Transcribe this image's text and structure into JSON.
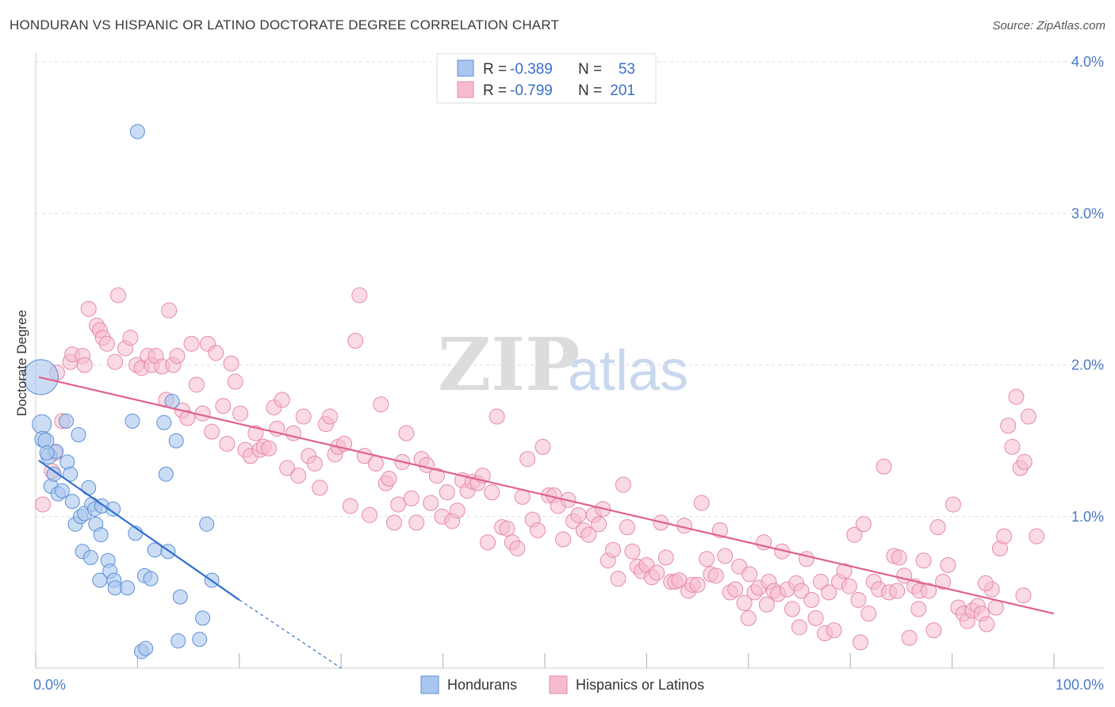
{
  "header": {
    "title": "HONDURAN VS HISPANIC OR LATINO DOCTORATE DEGREE CORRELATION CHART",
    "source": "Source: ZipAtlas.com"
  },
  "watermark": {
    "zip": "ZIP",
    "atlas": "atlas"
  },
  "legend": {
    "r_label": "R =",
    "n_label": "N =",
    "hondurans": {
      "r": "-0.389",
      "n": "53"
    },
    "hispanics": {
      "r": "-0.799",
      "n": "201"
    }
  },
  "bottom_legend": {
    "hondurans": "Hondurans",
    "hispanics": "Hispanics or Latinos"
  },
  "chart_data": {
    "type": "scatter",
    "title": "HONDURAN VS HISPANIC OR LATINO DOCTORATE DEGREE CORRELATION CHART",
    "xlabel": "",
    "ylabel": "Doctorate Degree",
    "xlim": [
      0,
      100
    ],
    "ylim": [
      0,
      4.0
    ],
    "x_tick_labels": {
      "left": "0.0%",
      "right": "100.0%"
    },
    "y_ticks": [
      {
        "value": 1.0,
        "label": "1.0%"
      },
      {
        "value": 2.0,
        "label": "2.0%"
      },
      {
        "value": 3.0,
        "label": "3.0%"
      },
      {
        "value": 4.0,
        "label": "4.0%"
      }
    ],
    "colors": {
      "hondurans_fill": "#a9c7ee",
      "hondurans_stroke": "#5b8fd6",
      "hondurans_line": "#2f6fd0",
      "hispanics_fill": "#f6bccd",
      "hispanics_stroke": "#e68aa6",
      "hispanics_line": "#e0628d"
    },
    "series": [
      {
        "name": "Hondurans",
        "r": -0.389,
        "n": 53,
        "trend": {
          "x0": 0.3,
          "y0": 1.37,
          "x1": 20,
          "y1": 0.45,
          "dash_to_x": 30,
          "dash_to_y": 0.0
        },
        "points": [
          [
            0.5,
            1.92,
            22
          ],
          [
            0.6,
            1.61,
            12
          ],
          [
            0.7,
            1.51,
            10
          ],
          [
            1.0,
            1.5,
            10
          ],
          [
            1.3,
            1.4,
            10
          ],
          [
            1.5,
            1.2,
            9
          ],
          [
            1.8,
            1.28,
            9
          ],
          [
            2.0,
            1.43,
            9
          ],
          [
            2.2,
            1.15,
            9
          ],
          [
            2.6,
            1.17,
            9
          ],
          [
            3.0,
            1.63,
            9
          ],
          [
            3.1,
            1.36,
            9
          ],
          [
            3.4,
            1.28,
            9
          ],
          [
            3.6,
            1.1,
            9
          ],
          [
            3.9,
            0.95,
            9
          ],
          [
            4.2,
            1.54,
            9
          ],
          [
            4.4,
            1.0,
            9
          ],
          [
            4.6,
            0.77,
            9
          ],
          [
            4.8,
            1.02,
            9
          ],
          [
            5.2,
            1.19,
            9
          ],
          [
            5.5,
            1.08,
            9
          ],
          [
            5.4,
            0.73,
            9
          ],
          [
            5.8,
            1.05,
            9
          ],
          [
            5.9,
            0.95,
            9
          ],
          [
            6.4,
            0.88,
            9
          ],
          [
            6.5,
            1.07,
            9
          ],
          [
            6.3,
            0.58,
            9
          ],
          [
            7.1,
            0.71,
            9
          ],
          [
            7.3,
            0.64,
            9
          ],
          [
            7.7,
            0.58,
            9
          ],
          [
            7.8,
            0.53,
            9
          ],
          [
            7.6,
            1.05,
            9
          ],
          [
            9.0,
            0.53,
            9
          ],
          [
            9.5,
            1.63,
            9
          ],
          [
            9.8,
            0.89,
            9
          ],
          [
            10.0,
            3.54,
            9
          ],
          [
            10.4,
            0.11,
            9
          ],
          [
            10.8,
            0.13,
            9
          ],
          [
            10.7,
            0.61,
            9
          ],
          [
            11.3,
            0.59,
            9
          ],
          [
            11.7,
            0.78,
            9
          ],
          [
            12.6,
            1.62,
            9
          ],
          [
            12.8,
            1.28,
            9
          ],
          [
            13.0,
            0.77,
            9
          ],
          [
            13.4,
            1.76,
            9
          ],
          [
            13.8,
            1.5,
            9
          ],
          [
            14.0,
            0.18,
            9
          ],
          [
            14.2,
            0.47,
            9
          ],
          [
            16.1,
            0.19,
            9
          ],
          [
            16.4,
            0.33,
            9
          ],
          [
            16.8,
            0.95,
            9
          ],
          [
            17.3,
            0.58,
            9
          ],
          [
            1.1,
            1.42,
            9
          ]
        ]
      },
      {
        "name": "Hispanics or Latinos",
        "r": -0.799,
        "n": 201,
        "trend": {
          "x0": 0.3,
          "y0": 1.92,
          "x1": 100,
          "y1": 0.36
        },
        "points": [
          [
            0.7,
            1.08
          ],
          [
            1.6,
            1.3
          ],
          [
            1.9,
            1.42
          ],
          [
            2.1,
            1.95
          ],
          [
            2.6,
            1.63
          ],
          [
            3.4,
            2.02
          ],
          [
            3.6,
            2.07
          ],
          [
            4.6,
            2.06
          ],
          [
            4.8,
            2.0
          ],
          [
            5.2,
            2.37
          ],
          [
            6.0,
            2.26
          ],
          [
            6.3,
            2.23
          ],
          [
            6.6,
            2.18
          ],
          [
            7.0,
            2.14
          ],
          [
            7.8,
            2.02
          ],
          [
            8.1,
            2.46
          ],
          [
            8.8,
            2.11
          ],
          [
            9.3,
            2.18
          ],
          [
            9.9,
            2.0
          ],
          [
            10.4,
            1.98
          ],
          [
            11.0,
            2.06
          ],
          [
            11.4,
            2.0
          ],
          [
            11.8,
            2.06
          ],
          [
            12.4,
            1.99
          ],
          [
            12.8,
            1.77
          ],
          [
            13.1,
            2.36
          ],
          [
            13.5,
            2.0
          ],
          [
            13.9,
            2.06
          ],
          [
            14.4,
            1.7
          ],
          [
            14.9,
            1.65
          ],
          [
            15.3,
            2.14
          ],
          [
            15.8,
            1.87
          ],
          [
            16.4,
            1.68
          ],
          [
            16.9,
            2.14
          ],
          [
            17.3,
            1.56
          ],
          [
            17.7,
            2.08
          ],
          [
            18.4,
            1.73
          ],
          [
            18.8,
            1.48
          ],
          [
            19.2,
            2.01
          ],
          [
            19.6,
            1.89
          ],
          [
            20.1,
            1.68
          ],
          [
            20.6,
            1.44
          ],
          [
            21.1,
            1.4
          ],
          [
            21.6,
            1.55
          ],
          [
            22.0,
            1.44
          ],
          [
            22.4,
            1.46
          ],
          [
            22.9,
            1.45
          ],
          [
            23.4,
            1.72
          ],
          [
            23.7,
            1.58
          ],
          [
            24.2,
            1.77
          ],
          [
            24.7,
            1.32
          ],
          [
            25.3,
            1.55
          ],
          [
            25.8,
            1.27
          ],
          [
            26.3,
            1.66
          ],
          [
            26.8,
            1.4
          ],
          [
            27.4,
            1.35
          ],
          [
            27.9,
            1.19
          ],
          [
            28.5,
            1.61
          ],
          [
            28.9,
            1.66
          ],
          [
            29.4,
            1.41
          ],
          [
            29.7,
            1.46
          ],
          [
            30.3,
            1.48
          ],
          [
            30.9,
            1.07
          ],
          [
            31.4,
            2.16
          ],
          [
            31.8,
            2.46
          ],
          [
            32.3,
            1.4
          ],
          [
            32.8,
            1.01
          ],
          [
            33.4,
            1.35
          ],
          [
            33.9,
            1.74
          ],
          [
            34.4,
            1.22
          ],
          [
            34.7,
            1.25
          ],
          [
            35.2,
            0.96
          ],
          [
            35.6,
            1.08
          ],
          [
            36.0,
            1.36
          ],
          [
            36.4,
            1.55
          ],
          [
            36.9,
            1.12
          ],
          [
            37.4,
            0.96
          ],
          [
            37.9,
            1.38
          ],
          [
            38.4,
            1.34
          ],
          [
            38.8,
            1.09
          ],
          [
            39.4,
            1.27
          ],
          [
            39.9,
            1.0
          ],
          [
            40.4,
            1.16
          ],
          [
            40.9,
            0.97
          ],
          [
            41.4,
            1.04
          ],
          [
            41.9,
            1.24
          ],
          [
            42.4,
            1.17
          ],
          [
            42.9,
            1.23
          ],
          [
            43.4,
            1.22
          ],
          [
            43.9,
            1.27
          ],
          [
            44.4,
            0.83
          ],
          [
            44.8,
            1.16
          ],
          [
            45.3,
            1.66
          ],
          [
            45.8,
            0.93
          ],
          [
            46.3,
            0.92
          ],
          [
            46.8,
            0.83
          ],
          [
            47.3,
            0.79
          ],
          [
            47.8,
            1.13
          ],
          [
            48.3,
            1.38
          ],
          [
            48.8,
            0.98
          ],
          [
            49.3,
            0.91
          ],
          [
            49.8,
            1.46
          ],
          [
            50.4,
            1.14
          ],
          [
            50.9,
            1.14
          ],
          [
            51.3,
            1.07
          ],
          [
            51.8,
            0.85
          ],
          [
            52.3,
            1.11
          ],
          [
            52.8,
            0.97
          ],
          [
            53.3,
            1.01
          ],
          [
            53.8,
            0.91
          ],
          [
            54.3,
            0.88
          ],
          [
            54.8,
            1.01
          ],
          [
            55.3,
            0.95
          ],
          [
            55.7,
            1.05
          ],
          [
            56.2,
            0.71
          ],
          [
            56.7,
            0.78
          ],
          [
            57.2,
            0.59
          ],
          [
            57.7,
            1.21
          ],
          [
            58.1,
            0.93
          ],
          [
            58.6,
            0.77
          ],
          [
            59.1,
            0.67
          ],
          [
            59.5,
            0.64
          ],
          [
            60.0,
            0.68
          ],
          [
            60.5,
            0.6
          ],
          [
            61.0,
            0.63
          ],
          [
            61.4,
            0.96
          ],
          [
            61.9,
            0.73
          ],
          [
            62.4,
            0.57
          ],
          [
            62.8,
            0.57
          ],
          [
            63.2,
            0.58
          ],
          [
            63.7,
            0.94
          ],
          [
            64.1,
            0.51
          ],
          [
            64.5,
            0.55
          ],
          [
            65.0,
            0.55
          ],
          [
            65.4,
            1.09
          ],
          [
            65.9,
            0.72
          ],
          [
            66.3,
            0.62
          ],
          [
            66.8,
            0.61
          ],
          [
            67.2,
            0.91
          ],
          [
            67.7,
            0.74
          ],
          [
            68.2,
            0.5
          ],
          [
            68.7,
            0.52
          ],
          [
            69.1,
            0.67
          ],
          [
            69.6,
            0.43
          ],
          [
            70.1,
            0.62
          ],
          [
            70.6,
            0.5
          ],
          [
            71.0,
            0.53
          ],
          [
            71.5,
            0.83
          ],
          [
            72.0,
            0.57
          ],
          [
            72.5,
            0.51
          ],
          [
            72.9,
            0.49
          ],
          [
            73.3,
            0.77
          ],
          [
            73.8,
            0.52
          ],
          [
            74.3,
            0.39
          ],
          [
            74.7,
            0.56
          ],
          [
            75.2,
            0.51
          ],
          [
            75.7,
            0.72
          ],
          [
            76.2,
            0.45
          ],
          [
            76.6,
            0.33
          ],
          [
            77.1,
            0.57
          ],
          [
            77.5,
            0.23
          ],
          [
            77.9,
            0.5
          ],
          [
            78.4,
            0.25
          ],
          [
            78.9,
            0.57
          ],
          [
            79.4,
            0.64
          ],
          [
            79.9,
            0.54
          ],
          [
            80.4,
            0.88
          ],
          [
            80.8,
            0.45
          ],
          [
            81.3,
            0.95
          ],
          [
            81.8,
            0.36
          ],
          [
            82.3,
            0.57
          ],
          [
            82.8,
            0.52
          ],
          [
            83.3,
            1.33
          ],
          [
            83.8,
            0.5
          ],
          [
            84.3,
            0.74
          ],
          [
            84.8,
            0.73
          ],
          [
            85.3,
            0.61
          ],
          [
            85.8,
            0.2
          ],
          [
            86.3,
            0.54
          ],
          [
            86.8,
            0.51
          ],
          [
            87.2,
            0.71
          ],
          [
            87.7,
            0.51
          ],
          [
            88.2,
            0.25
          ],
          [
            88.6,
            0.93
          ],
          [
            89.1,
            0.57
          ],
          [
            89.6,
            0.68
          ],
          [
            90.1,
            1.08
          ],
          [
            90.6,
            0.4
          ],
          [
            91.1,
            0.36
          ],
          [
            91.5,
            0.31
          ],
          [
            92.0,
            0.38
          ],
          [
            92.5,
            0.41
          ],
          [
            92.9,
            0.36
          ],
          [
            93.4,
            0.29
          ],
          [
            93.9,
            0.52
          ],
          [
            94.3,
            0.4
          ],
          [
            94.7,
            0.79
          ],
          [
            95.1,
            0.87
          ],
          [
            95.5,
            1.6
          ],
          [
            95.9,
            1.46
          ],
          [
            96.3,
            1.79
          ],
          [
            96.7,
            1.32
          ],
          [
            97.1,
            1.36
          ],
          [
            97.5,
            1.66
          ],
          [
            98.3,
            0.87
          ],
          [
            97.0,
            0.48
          ],
          [
            86.7,
            0.39
          ],
          [
            84.6,
            0.51
          ],
          [
            70.0,
            0.33
          ],
          [
            81.0,
            0.17
          ],
          [
            75.0,
            0.27
          ],
          [
            71.8,
            0.42
          ],
          [
            93.3,
            0.56
          ]
        ]
      }
    ]
  }
}
